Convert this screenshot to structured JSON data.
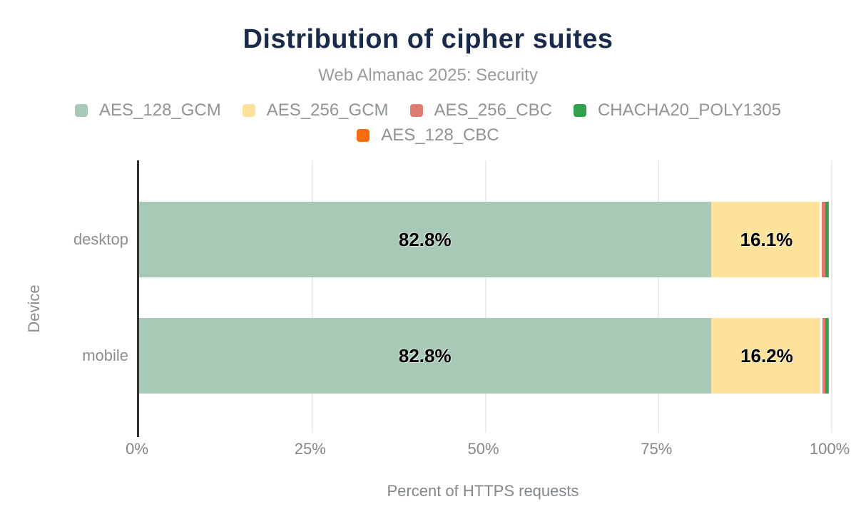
{
  "header": {
    "title": "Distribution of cipher suites",
    "subtitle": "Web Almanac 2025: Security"
  },
  "legend": {
    "items": [
      {
        "label": "AES_128_GCM",
        "color": "#a7c9b6"
      },
      {
        "label": "AES_256_GCM",
        "color": "#fde29b"
      },
      {
        "label": "AES_256_CBC",
        "color": "#de7a6e"
      },
      {
        "label": "CHACHA20_POLY1305",
        "color": "#31a14f"
      },
      {
        "label": "AES_128_CBC",
        "color": "#fa6c0d"
      }
    ]
  },
  "chart_data": {
    "type": "bar",
    "stacked": true,
    "orientation": "horizontal",
    "title": "Distribution of cipher suites",
    "subtitle": "Web Almanac 2025: Security",
    "categories": [
      "desktop",
      "mobile"
    ],
    "series": [
      {
        "name": "AES_128_GCM",
        "color": "#a7c9b6",
        "values": [
          82.8,
          82.8
        ],
        "labels": [
          "82.8%",
          "82.8%"
        ]
      },
      {
        "name": "AES_256_GCM",
        "color": "#fde29b",
        "values": [
          16.1,
          16.2
        ],
        "labels": [
          "16.1%",
          "16.2%"
        ]
      },
      {
        "name": "AES_256_CBC",
        "color": "#de7a6e",
        "values": [
          0.5,
          0.4
        ],
        "labels": [
          "",
          ""
        ]
      },
      {
        "name": "CHACHA20_POLY1305",
        "color": "#31a14f",
        "values": [
          0.4,
          0.4
        ],
        "labels": [
          "",
          ""
        ]
      },
      {
        "name": "AES_128_CBC",
        "color": "#fa6c0d",
        "values": [
          0.1,
          0.1
        ],
        "labels": [
          "",
          ""
        ]
      }
    ],
    "xlabel": "Percent of HTTPS requests",
    "ylabel": "Device",
    "xticks": [
      "0%",
      "25%",
      "50%",
      "75%",
      "100%"
    ],
    "xlim": [
      0,
      100
    ],
    "grid": true,
    "legend_position": "top"
  }
}
